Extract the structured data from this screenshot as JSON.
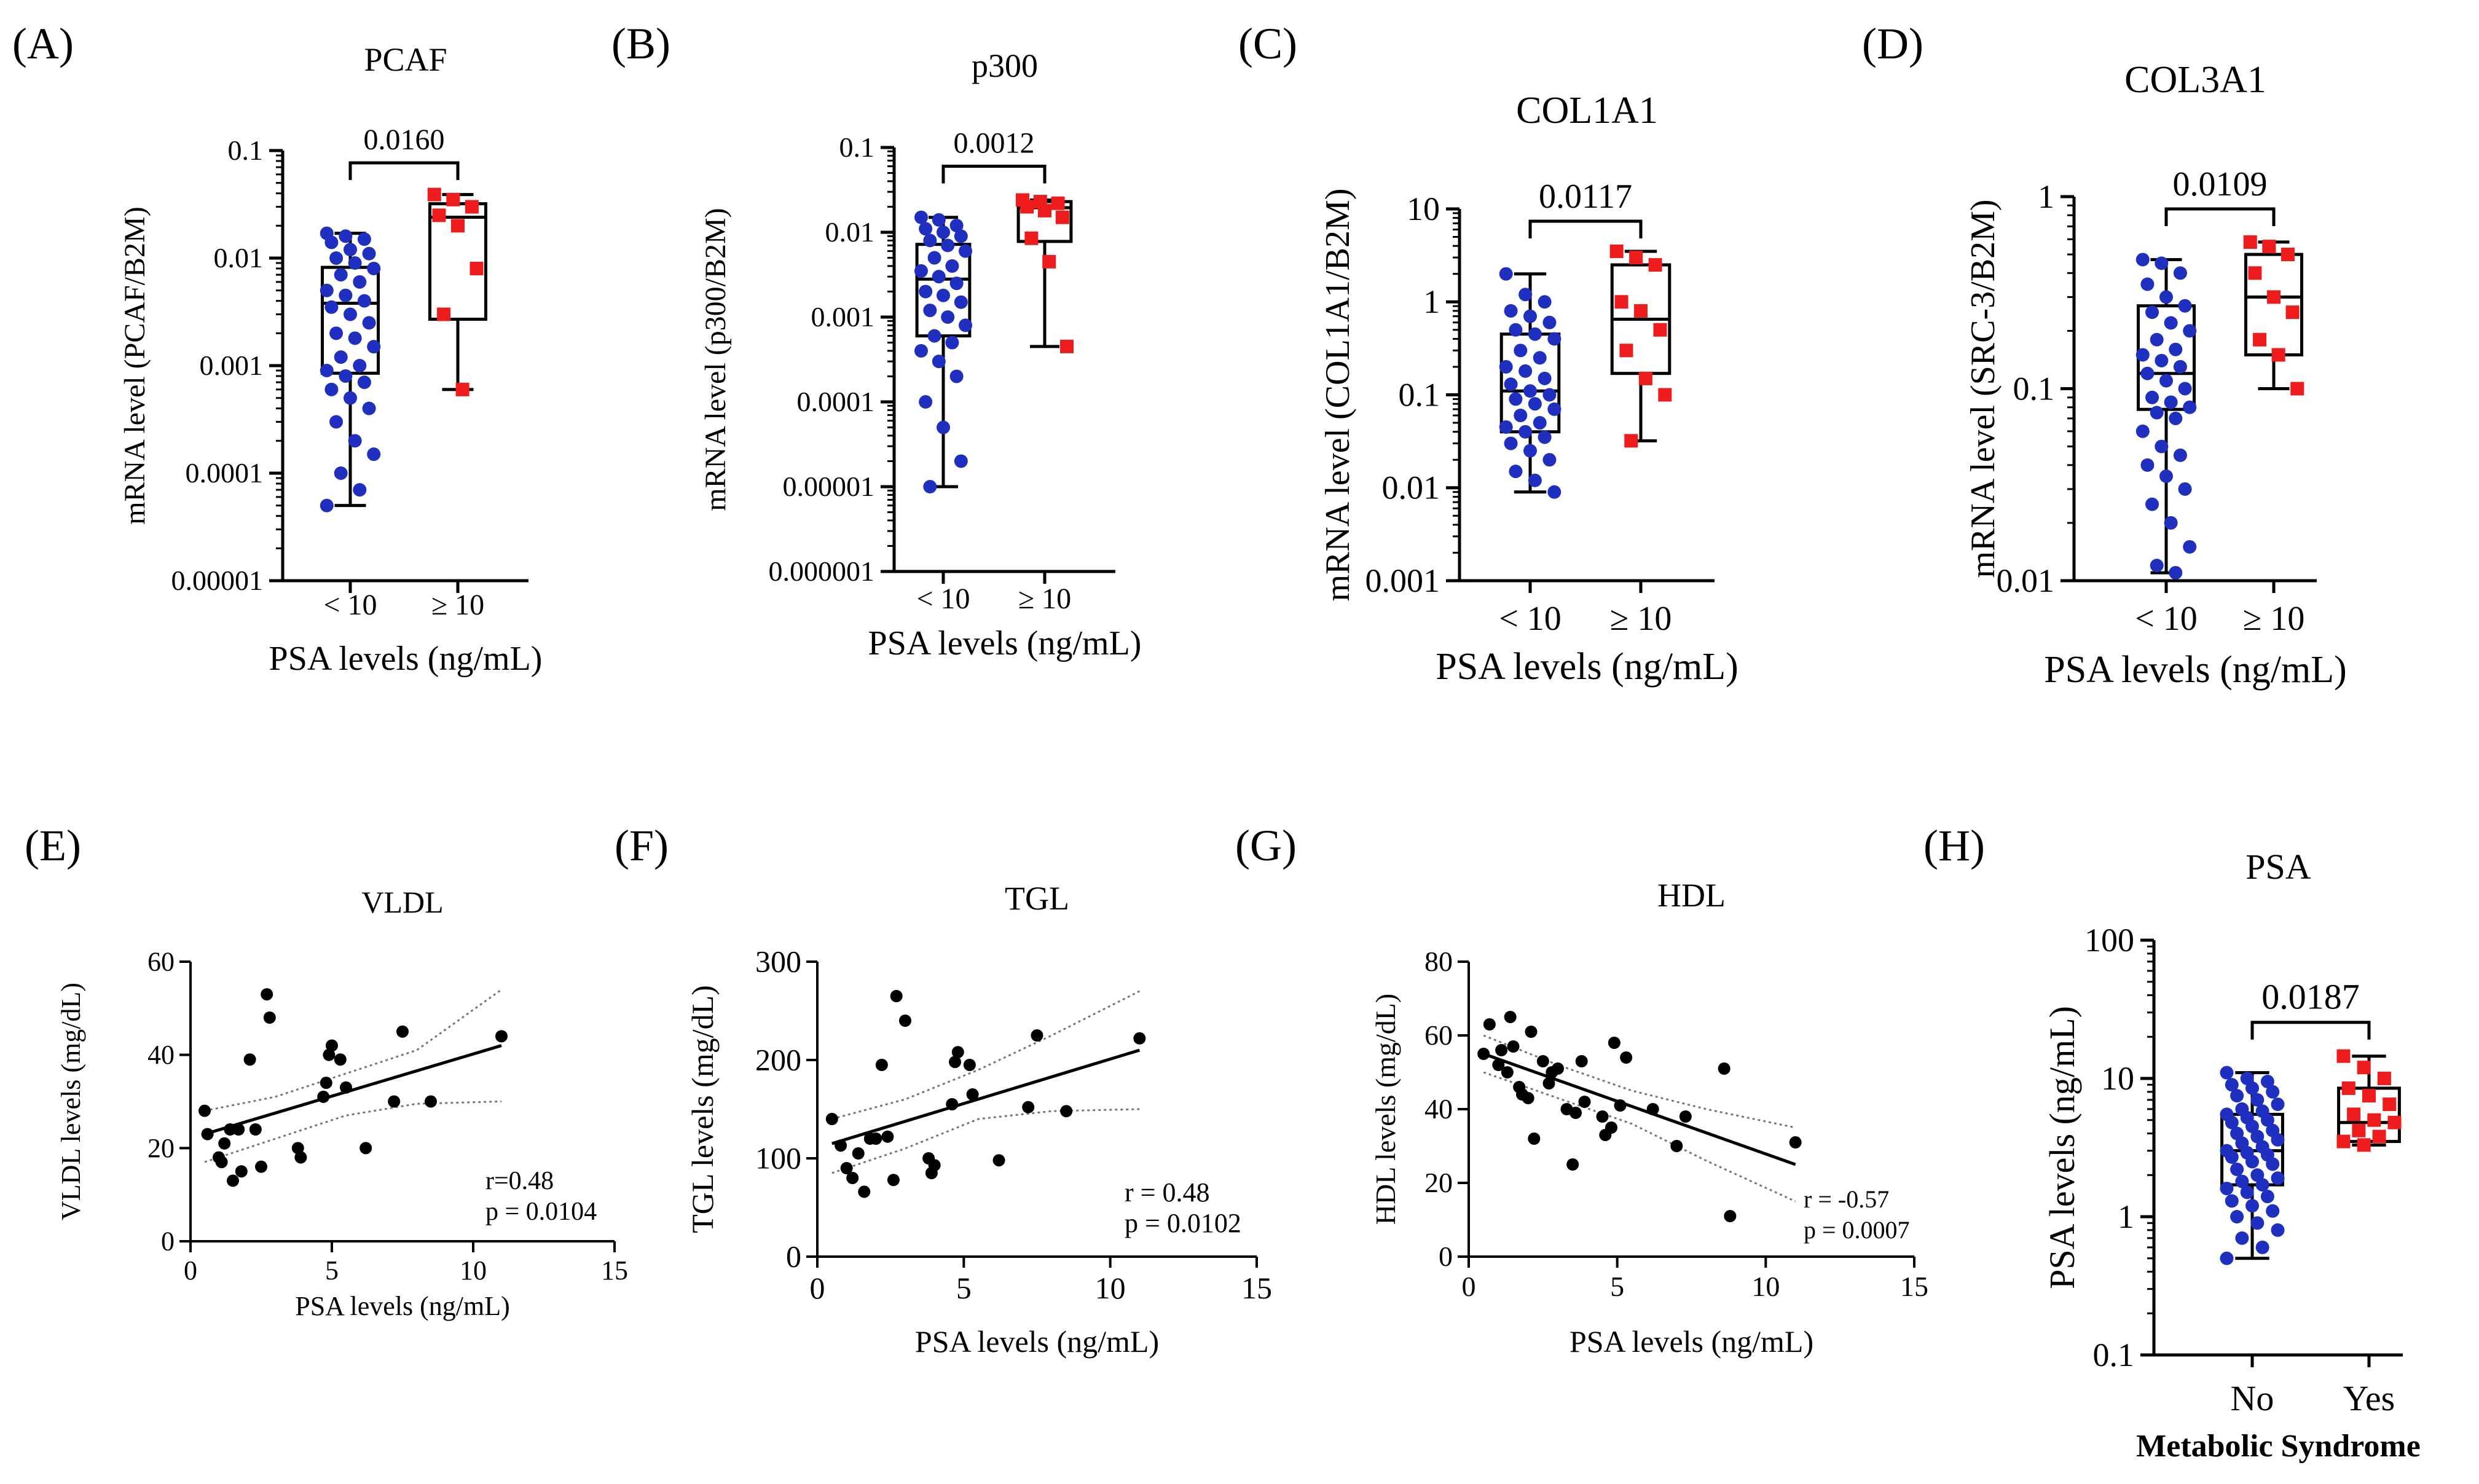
{
  "figure": {
    "colors": {
      "group_low": "#1f2fbf",
      "group_high": "#ee1c1c",
      "points": "#000000",
      "axis": "#000000",
      "ci": "#777777"
    }
  },
  "chart_data": [
    {
      "type": "box",
      "panel_label": "(A)",
      "title": "PCAF",
      "ylabel": "mRNA level (PCAF/B2M)",
      "xlabel": "PSA levels (ng/mL)",
      "yscale": "log",
      "ylim": [
        1e-05,
        0.1
      ],
      "ytick_labels": [
        "0.00001",
        "0.0001",
        "0.001",
        "0.01",
        "0.1"
      ],
      "categories": [
        "< 10",
        "≥ 10"
      ],
      "pvalue": "0.0160",
      "groups": [
        {
          "name": "< 10",
          "whisker_low": 5e-05,
          "q1": 0.00085,
          "median": 0.0038,
          "q3": 0.0082,
          "whisker_high": 0.017,
          "points": [
            0.017,
            0.016,
            0.015,
            0.014,
            0.012,
            0.011,
            0.01,
            0.009,
            0.008,
            0.007,
            0.006,
            0.005,
            0.0045,
            0.004,
            0.0035,
            0.003,
            0.0025,
            0.002,
            0.0018,
            0.0015,
            0.0012,
            0.001,
            0.0009,
            0.0008,
            0.0007,
            0.0006,
            0.0005,
            0.0004,
            0.0003,
            0.0002,
            0.00015,
            0.0001,
            7e-05,
            5e-05
          ]
        },
        {
          "name": "≥ 10",
          "whisker_low": 0.0006,
          "q1": 0.0027,
          "median": 0.024,
          "q3": 0.032,
          "whisker_high": 0.039,
          "points": [
            0.039,
            0.035,
            0.03,
            0.025,
            0.02,
            0.008,
            0.003,
            0.0006
          ]
        }
      ]
    },
    {
      "type": "box",
      "panel_label": "(B)",
      "title": "p300",
      "ylabel": "mRNA level (p300/B2M)",
      "xlabel": "PSA levels (ng/mL)",
      "yscale": "log",
      "ylim": [
        1e-06,
        0.1
      ],
      "ytick_labels": [
        "0.000001",
        "0.00001",
        "0.0001",
        "0.001",
        "0.01",
        "0.1"
      ],
      "categories": [
        "< 10",
        "≥ 10"
      ],
      "pvalue": "0.0012",
      "groups": [
        {
          "name": "< 10",
          "whisker_low": 1e-05,
          "q1": 0.0006,
          "median": 0.0028,
          "q3": 0.0072,
          "whisker_high": 0.015,
          "points": [
            0.015,
            0.014,
            0.012,
            0.011,
            0.01,
            0.009,
            0.008,
            0.007,
            0.006,
            0.005,
            0.004,
            0.0035,
            0.003,
            0.0025,
            0.002,
            0.0018,
            0.0015,
            0.0012,
            0.001,
            0.0008,
            0.0006,
            0.0005,
            0.0004,
            0.0003,
            0.0002,
            0.0001,
            5e-05,
            2e-05,
            1e-05
          ]
        },
        {
          "name": "≥ 10",
          "whisker_low": 0.00045,
          "q1": 0.0078,
          "median": 0.0195,
          "q3": 0.023,
          "whisker_high": 0.024,
          "points": [
            0.024,
            0.023,
            0.022,
            0.02,
            0.018,
            0.015,
            0.0085,
            0.0045,
            0.00045
          ]
        }
      ]
    },
    {
      "type": "box",
      "panel_label": "(C)",
      "title": "COL1A1",
      "ylabel": "mRNA level (COL1A1/B2M)",
      "xlabel": "PSA levels (ng/mL)",
      "yscale": "log",
      "ylim": [
        0.001,
        10
      ],
      "ytick_labels": [
        "0.001",
        "0.01",
        "0.1",
        "1",
        "10"
      ],
      "categories": [
        "< 10",
        "≥ 10"
      ],
      "pvalue": "0.0117",
      "groups": [
        {
          "name": "< 10",
          "whisker_low": 0.009,
          "q1": 0.04,
          "median": 0.11,
          "q3": 0.45,
          "whisker_high": 2.0,
          "points": [
            2.0,
            1.2,
            1.0,
            0.8,
            0.7,
            0.6,
            0.5,
            0.45,
            0.4,
            0.3,
            0.25,
            0.2,
            0.18,
            0.15,
            0.13,
            0.11,
            0.1,
            0.09,
            0.08,
            0.07,
            0.06,
            0.05,
            0.045,
            0.04,
            0.035,
            0.03,
            0.025,
            0.02,
            0.015,
            0.012,
            0.009
          ]
        },
        {
          "name": "≥ 10",
          "whisker_low": 0.032,
          "q1": 0.17,
          "median": 0.65,
          "q3": 2.5,
          "whisker_high": 3.5,
          "points": [
            3.5,
            3.0,
            2.5,
            1.0,
            0.8,
            0.5,
            0.3,
            0.15,
            0.1,
            0.032
          ]
        }
      ]
    },
    {
      "type": "box",
      "panel_label": "(D)",
      "title": "COL3A1",
      "ylabel": "mRNA level (SRC-3/B2M)",
      "xlabel": "PSA levels (ng/mL)",
      "yscale": "log",
      "ylim": [
        0.01,
        1
      ],
      "ytick_labels": [
        "0.01",
        "0.1",
        "1"
      ],
      "categories": [
        "< 10",
        "≥ 10"
      ],
      "pvalue": "0.0109",
      "groups": [
        {
          "name": "< 10",
          "whisker_low": 0.011,
          "q1": 0.078,
          "median": 0.12,
          "q3": 0.27,
          "whisker_high": 0.47,
          "points": [
            0.47,
            0.45,
            0.4,
            0.35,
            0.3,
            0.27,
            0.25,
            0.22,
            0.2,
            0.18,
            0.16,
            0.15,
            0.14,
            0.13,
            0.12,
            0.11,
            0.1,
            0.09,
            0.085,
            0.08,
            0.075,
            0.07,
            0.06,
            0.05,
            0.045,
            0.04,
            0.035,
            0.03,
            0.025,
            0.02,
            0.015,
            0.012,
            0.011
          ]
        },
        {
          "name": "≥ 10",
          "whisker_low": 0.1,
          "q1": 0.15,
          "median": 0.3,
          "q3": 0.5,
          "whisker_high": 0.58,
          "points": [
            0.58,
            0.55,
            0.5,
            0.4,
            0.3,
            0.25,
            0.18,
            0.15,
            0.1
          ]
        }
      ]
    },
    {
      "type": "scatter",
      "panel_label": "(E)",
      "title": "VLDL",
      "ylabel": "VLDL levels (mg/dL)",
      "xlabel": "PSA levels (ng/mL)",
      "xlim": [
        0,
        15
      ],
      "ylim": [
        0,
        60
      ],
      "xticks": [
        0,
        5,
        10,
        15
      ],
      "yticks": [
        0,
        20,
        40,
        60
      ],
      "r_text": "r=0.48",
      "p_text": "p = 0.0104",
      "fit": {
        "x": [
          0.5,
          11
        ],
        "y": [
          23,
          42
        ]
      },
      "ci_upper": {
        "x": [
          0.5,
          3,
          5.5,
          8,
          11
        ],
        "y": [
          28,
          31,
          36,
          41,
          54
        ]
      },
      "ci_lower": {
        "x": [
          0.5,
          3,
          5.5,
          8,
          11
        ],
        "y": [
          17,
          22,
          27,
          29.5,
          30
        ]
      },
      "points": {
        "x": [
          0.5,
          0.6,
          1.0,
          1.1,
          1.2,
          1.4,
          1.5,
          1.7,
          1.8,
          2.1,
          2.3,
          2.5,
          2.7,
          2.8,
          3.8,
          3.9,
          4.7,
          4.8,
          4.9,
          5.0,
          5.3,
          5.5,
          6.2,
          7.2,
          7.5,
          8.5,
          11.0
        ],
        "y": [
          28,
          23,
          18,
          17,
          21,
          24,
          13,
          24,
          15,
          39,
          24,
          16,
          53,
          48,
          20,
          18,
          31,
          34,
          40,
          42,
          39,
          33,
          20,
          30,
          45,
          30,
          44
        ]
      }
    },
    {
      "type": "scatter",
      "panel_label": "(F)",
      "title": "TGL",
      "ylabel": "TGL levels (mg/dL)",
      "xlabel": "PSA levels (ng/mL)",
      "xlim": [
        0,
        15
      ],
      "ylim": [
        0,
        300
      ],
      "xticks": [
        0,
        5,
        10,
        15
      ],
      "yticks": [
        0,
        100,
        200,
        300
      ],
      "r_text": "r = 0.48",
      "p_text": "p = 0.0102",
      "fit": {
        "x": [
          0.5,
          11
        ],
        "y": [
          115,
          210
        ]
      },
      "ci_upper": {
        "x": [
          0.5,
          3,
          5.5,
          8,
          11
        ],
        "y": [
          140,
          160,
          190,
          225,
          270
        ]
      },
      "ci_lower": {
        "x": [
          0.5,
          3,
          5.5,
          8,
          11
        ],
        "y": [
          85,
          110,
          140,
          148,
          150
        ]
      },
      "points": {
        "x": [
          0.5,
          0.8,
          1.0,
          1.2,
          1.4,
          1.6,
          1.8,
          2.0,
          2.2,
          2.4,
          2.6,
          2.7,
          3.0,
          3.8,
          3.9,
          4.0,
          4.6,
          4.7,
          4.8,
          5.2,
          5.3,
          6.2,
          7.2,
          7.5,
          8.5,
          11.0
        ],
        "y": [
          140,
          113,
          90,
          80,
          105,
          66,
          120,
          120,
          195,
          122,
          78,
          265,
          240,
          100,
          85,
          93,
          155,
          198,
          208,
          195,
          165,
          98,
          152,
          225,
          148,
          222
        ]
      }
    },
    {
      "type": "scatter",
      "panel_label": "(G)",
      "title": "HDL",
      "ylabel": "HDL levels (mg/dL)",
      "xlabel": "PSA levels (ng/mL)",
      "xlim": [
        0,
        15
      ],
      "ylim": [
        0,
        80
      ],
      "xticks": [
        0,
        5,
        10,
        15
      ],
      "yticks": [
        0,
        20,
        40,
        60,
        80
      ],
      "r_text": "r = -0.57",
      "p_text": "p = 0.0007",
      "fit": {
        "x": [
          0.5,
          11
        ],
        "y": [
          55,
          25
        ]
      },
      "ci_upper": {
        "x": [
          0.5,
          3,
          5.5,
          8,
          11
        ],
        "y": [
          60,
          52,
          45,
          40,
          35
        ]
      },
      "ci_lower": {
        "x": [
          0.5,
          3,
          5.5,
          8,
          11
        ],
        "y": [
          50,
          43,
          36,
          26,
          15
        ]
      },
      "points": {
        "x": [
          0.5,
          0.7,
          1.0,
          1.1,
          1.3,
          1.4,
          1.5,
          1.7,
          1.8,
          2.0,
          2.1,
          2.2,
          2.5,
          2.7,
          2.8,
          3.0,
          3.3,
          3.5,
          3.6,
          3.8,
          3.9,
          4.5,
          4.6,
          4.8,
          4.9,
          5.1,
          5.3,
          6.2,
          7.0,
          7.3,
          8.6,
          8.8,
          11.0
        ],
        "y": [
          55,
          63,
          52,
          56,
          50,
          65,
          57,
          46,
          44,
          43,
          61,
          32,
          53,
          47,
          50,
          51,
          40,
          25,
          39,
          53,
          42,
          38,
          33,
          35,
          58,
          41,
          54,
          40,
          30,
          38,
          51,
          11,
          31
        ]
      }
    },
    {
      "type": "box",
      "panel_label": "(H)",
      "title": "PSA",
      "ylabel": "PSA levels (ng/mL)",
      "xlabel": "Metabolic Syndrome",
      "yscale": "log",
      "ylim": [
        0.1,
        100
      ],
      "ytick_labels": [
        "0.1",
        "1",
        "10",
        "100"
      ],
      "categories": [
        "No",
        "Yes"
      ],
      "pvalue": "0.0187",
      "groups": [
        {
          "name": "No",
          "whisker_low": 0.5,
          "q1": 1.7,
          "median": 3.0,
          "q3": 5.5,
          "whisker_high": 11,
          "points": [
            11,
            10,
            9.5,
            9,
            8.5,
            8,
            7.5,
            7,
            6.5,
            6,
            5.8,
            5.5,
            5.2,
            5,
            4.8,
            4.5,
            4.2,
            4,
            3.8,
            3.6,
            3.4,
            3.2,
            3,
            2.9,
            2.8,
            2.7,
            2.5,
            2.4,
            2.2,
            2,
            1.9,
            1.8,
            1.7,
            1.6,
            1.5,
            1.4,
            1.3,
            1.2,
            1.1,
            1,
            0.9,
            0.8,
            0.7,
            0.6,
            0.5
          ]
        },
        {
          "name": "Yes",
          "whisker_low": 3.3,
          "q1": 3.5,
          "median": 4.8,
          "q3": 8.5,
          "whisker_high": 14.5,
          "points": [
            14.5,
            12,
            10,
            8.5,
            7.5,
            6.5,
            5.5,
            5,
            4.8,
            4.2,
            3.8,
            3.5,
            3.3
          ]
        }
      ]
    }
  ]
}
